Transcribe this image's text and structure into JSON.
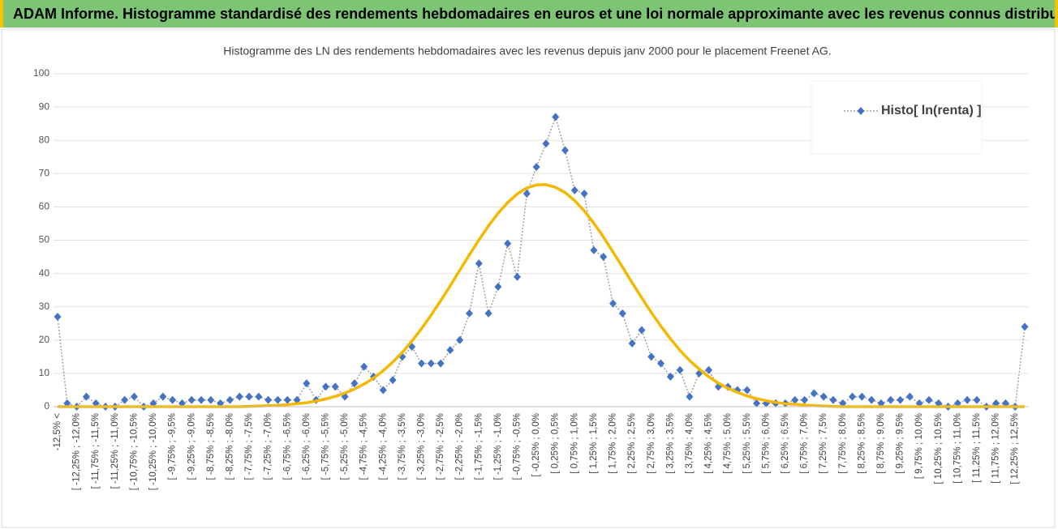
{
  "header": {
    "title": "ADAM Informe. Histogramme standardisé des rendements hebdomadaires en euros et une loi normale approximante avec les revenus connus distribués"
  },
  "chart_data": {
    "type": "line",
    "title": "Histogramme des LN des rendements hebdomadaires avec les revenus depuis janv 2000 pour le placement Freenet AG.",
    "categories": [
      "-12,5% <",
      null,
      "[ -12,25% ; -12,0%",
      null,
      "[ -11,75% ; -11,5%",
      null,
      "[ -11,25% ; -11,0%",
      null,
      "[ -10,75% ; -10,5%",
      null,
      "[ -10,25% ; -10,0%",
      null,
      "[ -9,75% ; -9,5%",
      null,
      "[ -9,25% ; -9,0%",
      null,
      "[ -8,75% ; -8,5%",
      null,
      "[ -8,25% ; -8,0%",
      null,
      "[ -7,75% ; -7,5%",
      null,
      "[ -7,25% ; -7,0%",
      null,
      "[ -6,75% ; -6,5%",
      null,
      "[ -6,25% ; -6,0%",
      null,
      "[ -5,75% ; -5,5%",
      null,
      "[ -5,25% ; -5,0%",
      null,
      "[ -4,75% ; -4,5%",
      null,
      "[ -4,25% ; -4,0%",
      null,
      "[ -3,75% ; -3,5%",
      null,
      "[ -3,25% ; -3,0%",
      null,
      "[ -2,75% ; -2,5%",
      null,
      "[ -2,25% ; -2,0%",
      null,
      "[ -1,75% ; -1,5%",
      null,
      "[ -1,25% ; -1,0%",
      null,
      "[ -0,75% ; -0,5%",
      null,
      "[ -0,25% ; 0,0%",
      null,
      "[ 0,25% ; 0,5%",
      null,
      "[ 0,75% ; 1,0%",
      null,
      "[ 1,25% ; 1,5%",
      null,
      "[ 1,75% ; 2,0%",
      null,
      "[ 2,25% ; 2,5%",
      null,
      "[ 2,75% ; 3,0%",
      null,
      "[ 3,25% ; 3,5%",
      null,
      "[ 3,75% ; 4,0%",
      null,
      "[ 4,25% ; 4,5%",
      null,
      "[ 4,75% ; 5,0%",
      null,
      "[ 5,25% ; 5,5%",
      null,
      "[ 5,75% ; 6,0%",
      null,
      "[ 6,25% ; 6,5%",
      null,
      "[ 6,75% ; 7,0%",
      null,
      "[ 7,25% ; 7,5%",
      null,
      "[ 7,75% ; 8,0%",
      null,
      "[ 8,25% ; 8,5%",
      null,
      "[ 8,75% ; 9,0%",
      null,
      "[ 9,25% ; 9,5%",
      null,
      "[ 9,75% ; 10,0%",
      null,
      "[ 10,25% ; 10,5%",
      null,
      "[ 10,75% ; 11,0%",
      null,
      "[ 11,25% ; 11,5%",
      null,
      "[ 11,75% ; 12,0%",
      null,
      "[ 12,25% ; 12,5%",
      null
    ],
    "series": [
      {
        "name": "Histo[ ln(renta) ]",
        "color": "#4472c4",
        "values": [
          27,
          1,
          0,
          3,
          1,
          0,
          0,
          2,
          3,
          0,
          1,
          3,
          2,
          1,
          2,
          2,
          2,
          1,
          2,
          3,
          3,
          3,
          2,
          2,
          2,
          2,
          7,
          2,
          6,
          6,
          3,
          7,
          12,
          9,
          5,
          8,
          15,
          18,
          13,
          13,
          13,
          17,
          20,
          28,
          43,
          28,
          36,
          49,
          39,
          64,
          72,
          79,
          87,
          77,
          65,
          64,
          47,
          45,
          31,
          28,
          19,
          23,
          15,
          13,
          9,
          11,
          3,
          10,
          11,
          6,
          6,
          5,
          5,
          1,
          1,
          1,
          1,
          2,
          2,
          4,
          3,
          2,
          1,
          3,
          3,
          2,
          1,
          2,
          2,
          3,
          1,
          2,
          1,
          0,
          1,
          2,
          2,
          0,
          1,
          1,
          0,
          24
        ]
      },
      {
        "color": "#f5b800",
        "values": [
          0,
          0,
          0,
          0,
          0,
          0,
          0,
          0,
          0,
          0,
          0,
          0,
          0,
          0,
          0,
          0,
          0,
          0,
          0,
          0,
          0.1,
          0.2,
          0.3,
          0.4,
          0.6,
          0.9,
          1.2,
          1.7,
          2.3,
          3.1,
          4.1,
          5.3,
          6.8,
          8.6,
          10.8,
          13.4,
          16.3,
          19.7,
          23.4,
          27.5,
          31.8,
          36.3,
          41.0,
          45.6,
          50.1,
          54.3,
          58.1,
          61.3,
          63.9,
          65.7,
          66.6,
          66.7,
          65.9,
          64.3,
          61.9,
          58.8,
          55.1,
          51.0,
          46.5,
          41.9,
          37.2,
          32.7,
          28.3,
          24.2,
          20.4,
          16.9,
          13.9,
          11.3,
          9.0,
          7.1,
          5.5,
          4.3,
          3.2,
          2.4,
          1.8,
          1.3,
          0.9,
          0.7,
          0.5,
          0.3,
          0.2,
          0.1,
          0,
          0,
          0,
          0,
          0,
          0,
          0,
          0,
          0,
          0,
          0,
          0,
          0,
          0,
          0,
          0,
          0,
          0,
          0,
          0
        ]
      }
    ],
    "ylim": [
      0,
      100
    ],
    "yticks": [
      0,
      10,
      20,
      30,
      40,
      50,
      60,
      70,
      80,
      90,
      100
    ],
    "grid": true,
    "legend": "top-right"
  }
}
